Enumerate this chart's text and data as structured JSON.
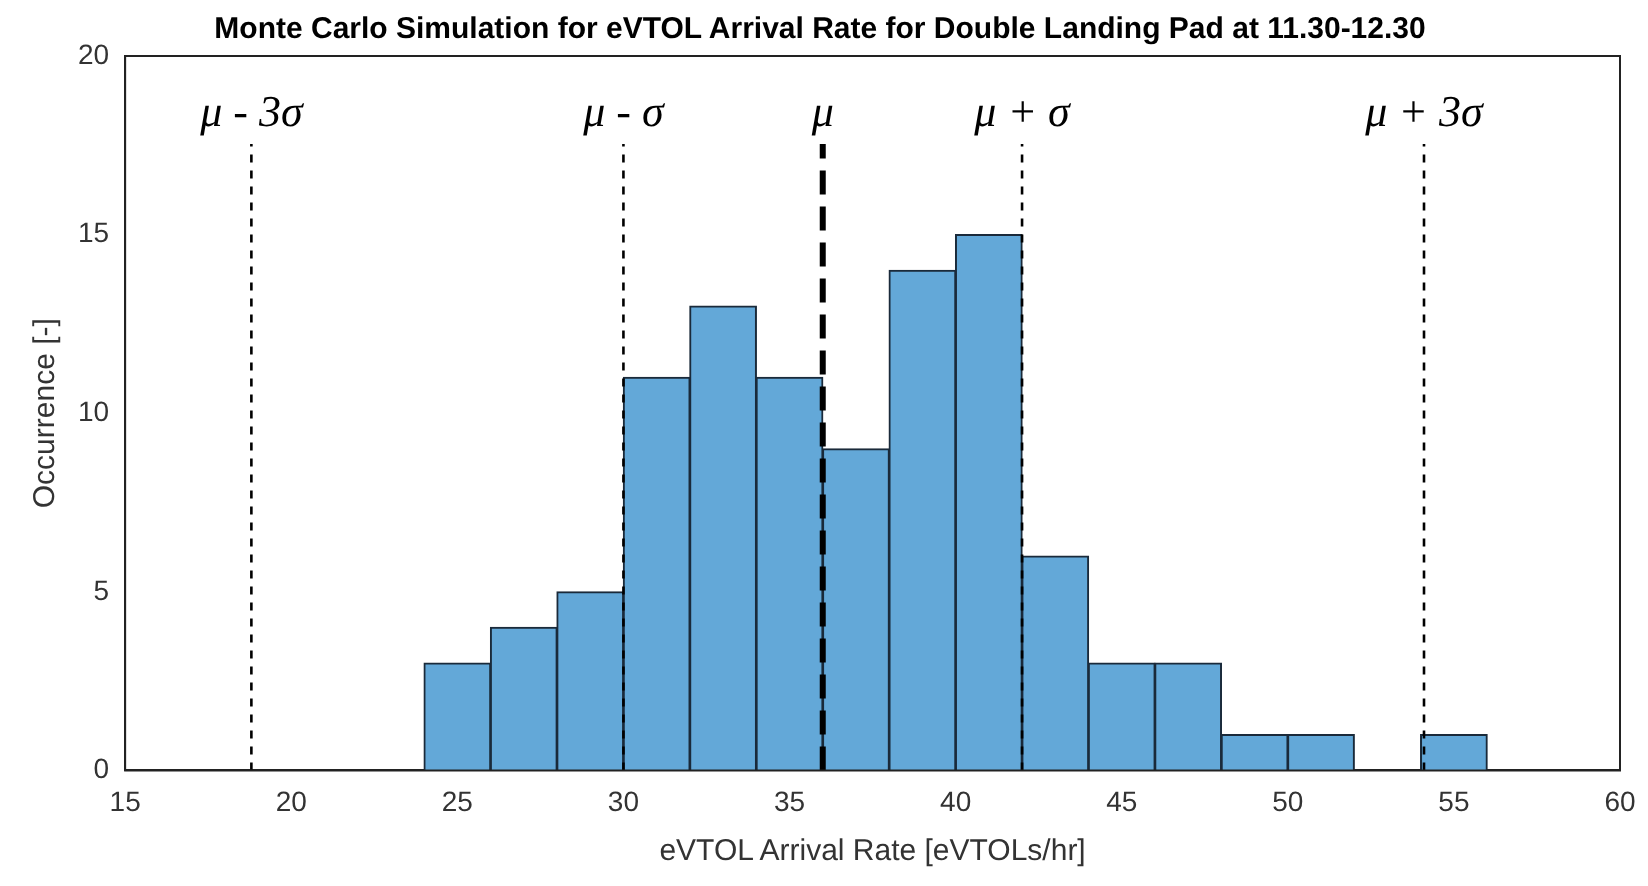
{
  "chart_data": {
    "type": "histogram",
    "title": "Monte Carlo Simulation for eVTOL Arrival Rate for Double Landing Pad at 11.30-12.30",
    "xlabel": "eVTOL Arrival Rate [eVTOLs/hr]",
    "ylabel": "Occurrence [-]",
    "bins": [
      24,
      26,
      28,
      30,
      32,
      34,
      36,
      38,
      40,
      42,
      44,
      46,
      48,
      50,
      52,
      54,
      56
    ],
    "values": [
      3,
      4,
      5,
      11,
      13,
      11,
      9,
      14,
      15,
      6,
      3,
      3,
      1,
      1,
      0,
      1
    ],
    "color": "#63a8d8",
    "xlim": [
      15,
      60
    ],
    "xticks": [
      15,
      20,
      25,
      30,
      35,
      40,
      45,
      50,
      55,
      60
    ],
    "ylim": [
      0,
      20
    ],
    "yticks": [
      0,
      5,
      10,
      15,
      20
    ],
    "grid": false,
    "legend": false,
    "ref_lines": [
      {
        "axis": "x",
        "value": 18.8,
        "label": "μ - 3σ",
        "line_style": "dotted"
      },
      {
        "axis": "x",
        "value": 30,
        "label": "μ - σ",
        "line_style": "dotted"
      },
      {
        "axis": "x",
        "value": 36,
        "label": "μ",
        "line_style": "dashed"
      },
      {
        "axis": "x",
        "value": 42,
        "label": "μ + σ",
        "line_style": "dotted"
      },
      {
        "axis": "x",
        "value": 54.1,
        "label": "μ + 3σ",
        "line_style": "dotted"
      }
    ]
  }
}
